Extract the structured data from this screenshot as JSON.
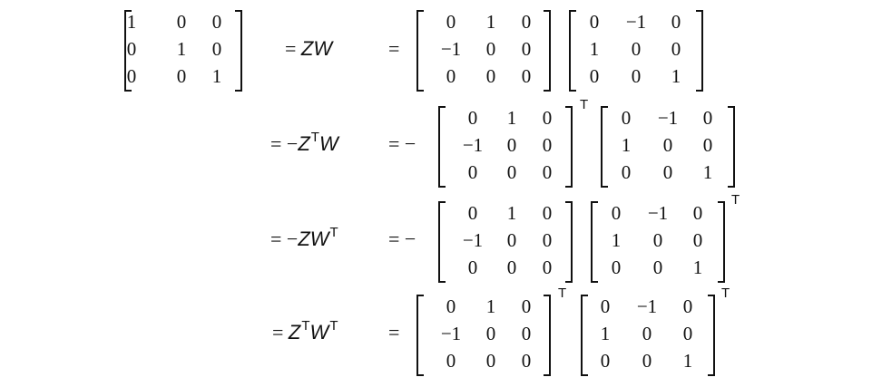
{
  "lhs_matrix": [
    "1",
    "0",
    "0",
    "0",
    "1",
    "0",
    "0",
    "0",
    "1"
  ],
  "rows": [
    {
      "expr": [
        {
          "t": "= "
        },
        {
          "i": "Z"
        },
        {
          "i": "W"
        }
      ],
      "prefix": "=",
      "m1": [
        "0",
        "1",
        "0",
        "−1",
        "0",
        "0",
        "0",
        "0",
        "0"
      ],
      "m1_transpose": "",
      "m2": [
        "0",
        "−1",
        "0",
        "1",
        "0",
        "0",
        "0",
        "0",
        "1"
      ],
      "m2_transpose": ""
    },
    {
      "expr": [
        {
          "t": "= −"
        },
        {
          "i": "Z"
        },
        {
          "s": "T"
        },
        {
          "i": "W"
        }
      ],
      "prefix": "= −",
      "m1": [
        "0",
        "1",
        "0",
        "−1",
        "0",
        "0",
        "0",
        "0",
        "0"
      ],
      "m1_transpose": "T",
      "m2": [
        "0",
        "−1",
        "0",
        "1",
        "0",
        "0",
        "0",
        "0",
        "1"
      ],
      "m2_transpose": ""
    },
    {
      "expr": [
        {
          "t": "= −"
        },
        {
          "i": "Z"
        },
        {
          "i": "W"
        },
        {
          "s": "T"
        }
      ],
      "prefix": "= −",
      "m1": [
        "0",
        "1",
        "0",
        "−1",
        "0",
        "0",
        "0",
        "0",
        "0"
      ],
      "m1_transpose": "",
      "m2": [
        "0",
        "−1",
        "0",
        "1",
        "0",
        "0",
        "0",
        "0",
        "1"
      ],
      "m2_transpose": "T"
    },
    {
      "expr": [
        {
          "t": "= "
        },
        {
          "i": "Z"
        },
        {
          "s": "T"
        },
        {
          "i": "W"
        },
        {
          "s": "T"
        }
      ],
      "prefix": "=",
      "m1": [
        "0",
        "1",
        "0",
        "−1",
        "0",
        "0",
        "0",
        "0",
        "0"
      ],
      "m1_transpose": "T",
      "m2": [
        "0",
        "−1",
        "0",
        "1",
        "0",
        "0",
        "0",
        "0",
        "1"
      ],
      "m2_transpose": "T"
    }
  ]
}
